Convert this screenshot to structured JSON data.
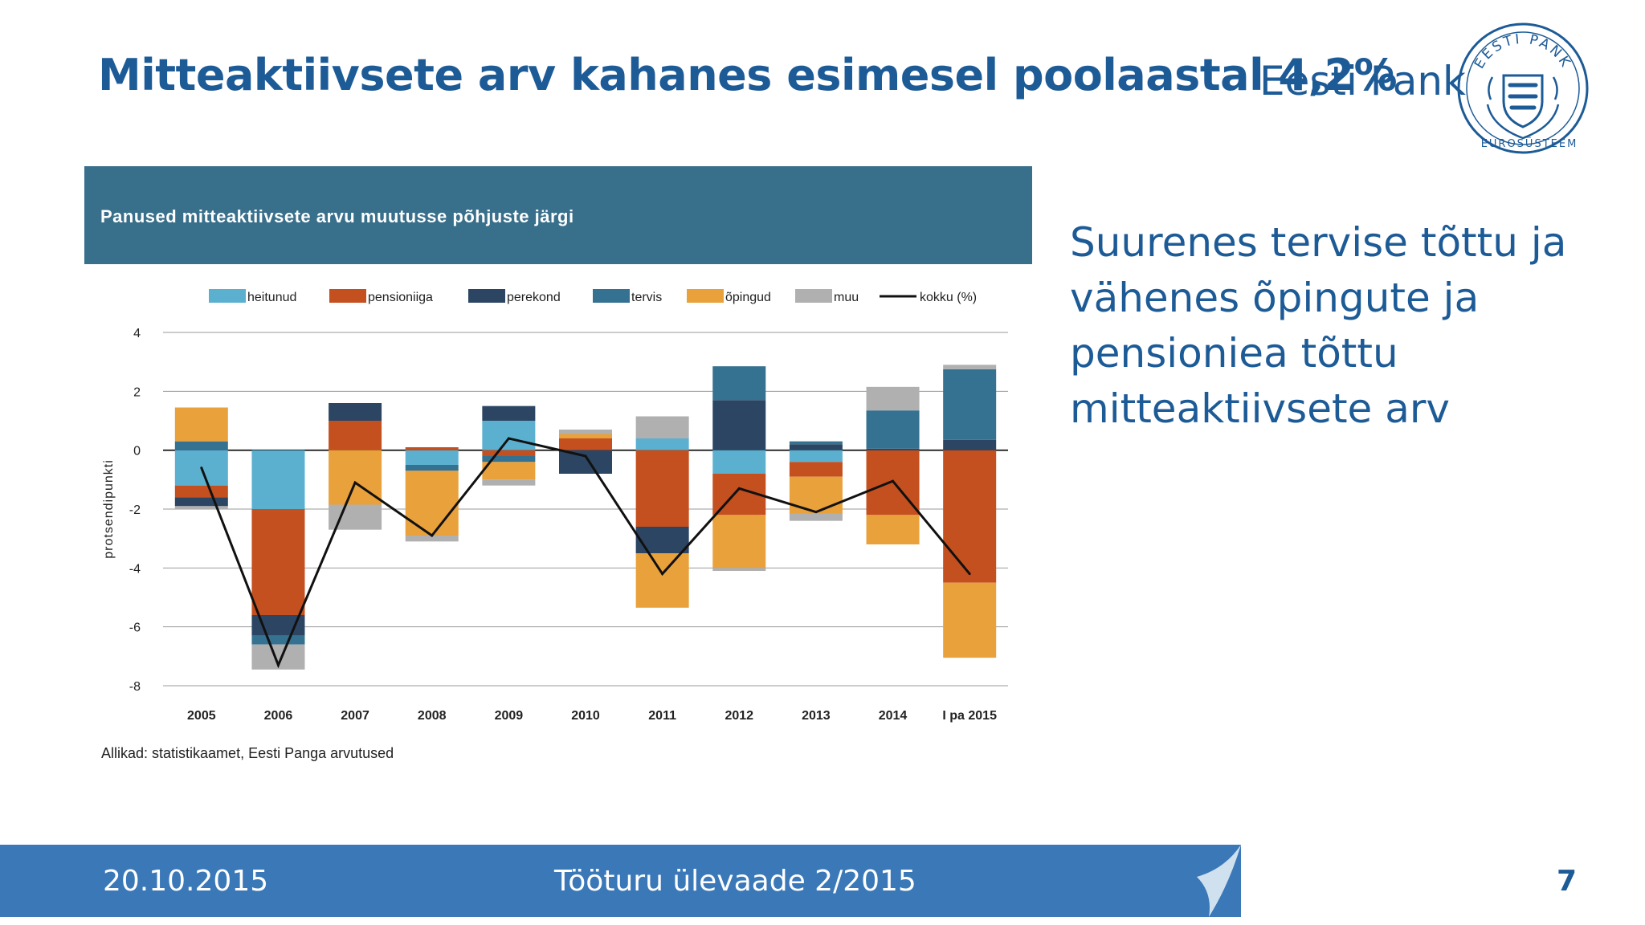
{
  "slide": {
    "title": "Mitteaktiivsete arv kahanes esimesel poolaastal 4,2%",
    "brand": "Eesti Pank",
    "logo_caption": "EUROSÜSTEEM",
    "logo_ring_text": "EESTI PANK",
    "side_text": "Suurenes tervise tõttu ja vähenes õpingute ja pensioniea tõttu mitteaktiivsete arv",
    "source": "Allikad: statistikaamet, Eesti Panga arvutused"
  },
  "footer": {
    "date": "20.10.2015",
    "center": "Tööturu ülevaade 2/2015",
    "page": "7"
  },
  "chart_data": {
    "type": "bar",
    "title": "Panused mitteaktiivsete arvu muutusse põhjuste järgi",
    "ylabel": "protsendipunkti",
    "xlabel": "",
    "ylim": [
      -8,
      4
    ],
    "yticks": [
      4,
      2,
      0,
      -2,
      -4,
      -6,
      -8
    ],
    "grid": true,
    "legend_position": "top",
    "stacked": true,
    "categories": [
      "2005",
      "2006",
      "2007",
      "2008",
      "2009",
      "2010",
      "2011",
      "2012",
      "2013",
      "2014",
      "I pa 2015"
    ],
    "series": [
      {
        "name": "heitunud",
        "color": "#5bb0d0",
        "values": [
          -1.2,
          -2.0,
          0.0,
          -0.5,
          1.0,
          0.0,
          0.4,
          -0.8,
          -0.4,
          0.0,
          0.0
        ]
      },
      {
        "name": "pensioniiga",
        "color": "#c44f1f",
        "values": [
          -0.4,
          -3.6,
          1.0,
          0.1,
          -0.2,
          0.4,
          -2.6,
          -1.4,
          -0.5,
          -2.2,
          -4.5
        ]
      },
      {
        "name": "perekond",
        "color": "#2c4563",
        "values": [
          -0.3,
          -0.7,
          0.6,
          0.0,
          0.5,
          -0.8,
          -0.9,
          1.7,
          0.2,
          0.05,
          0.35
        ]
      },
      {
        "name": "tervis",
        "color": "#357190",
        "values": [
          0.3,
          -0.3,
          0.0,
          -0.2,
          -0.2,
          0.0,
          0.0,
          1.15,
          0.1,
          1.3,
          2.4
        ]
      },
      {
        "name": "õpingud",
        "color": "#e9a13c",
        "values": [
          1.15,
          0.0,
          -1.85,
          -2.2,
          -0.6,
          0.15,
          -1.85,
          -1.8,
          -1.25,
          -1.0,
          -2.55
        ]
      },
      {
        "name": "muu",
        "color": "#b0b0b0",
        "values": [
          -0.1,
          -0.85,
          -0.85,
          -0.2,
          -0.2,
          0.15,
          0.75,
          -0.1,
          -0.25,
          0.8,
          0.15
        ]
      }
    ],
    "line": {
      "name": "kokku (%)",
      "color": "#111111",
      "values": [
        -0.6,
        -7.3,
        -1.1,
        -2.9,
        0.4,
        -0.2,
        -4.2,
        -1.3,
        -2.1,
        -1.05,
        -4.2
      ]
    }
  }
}
